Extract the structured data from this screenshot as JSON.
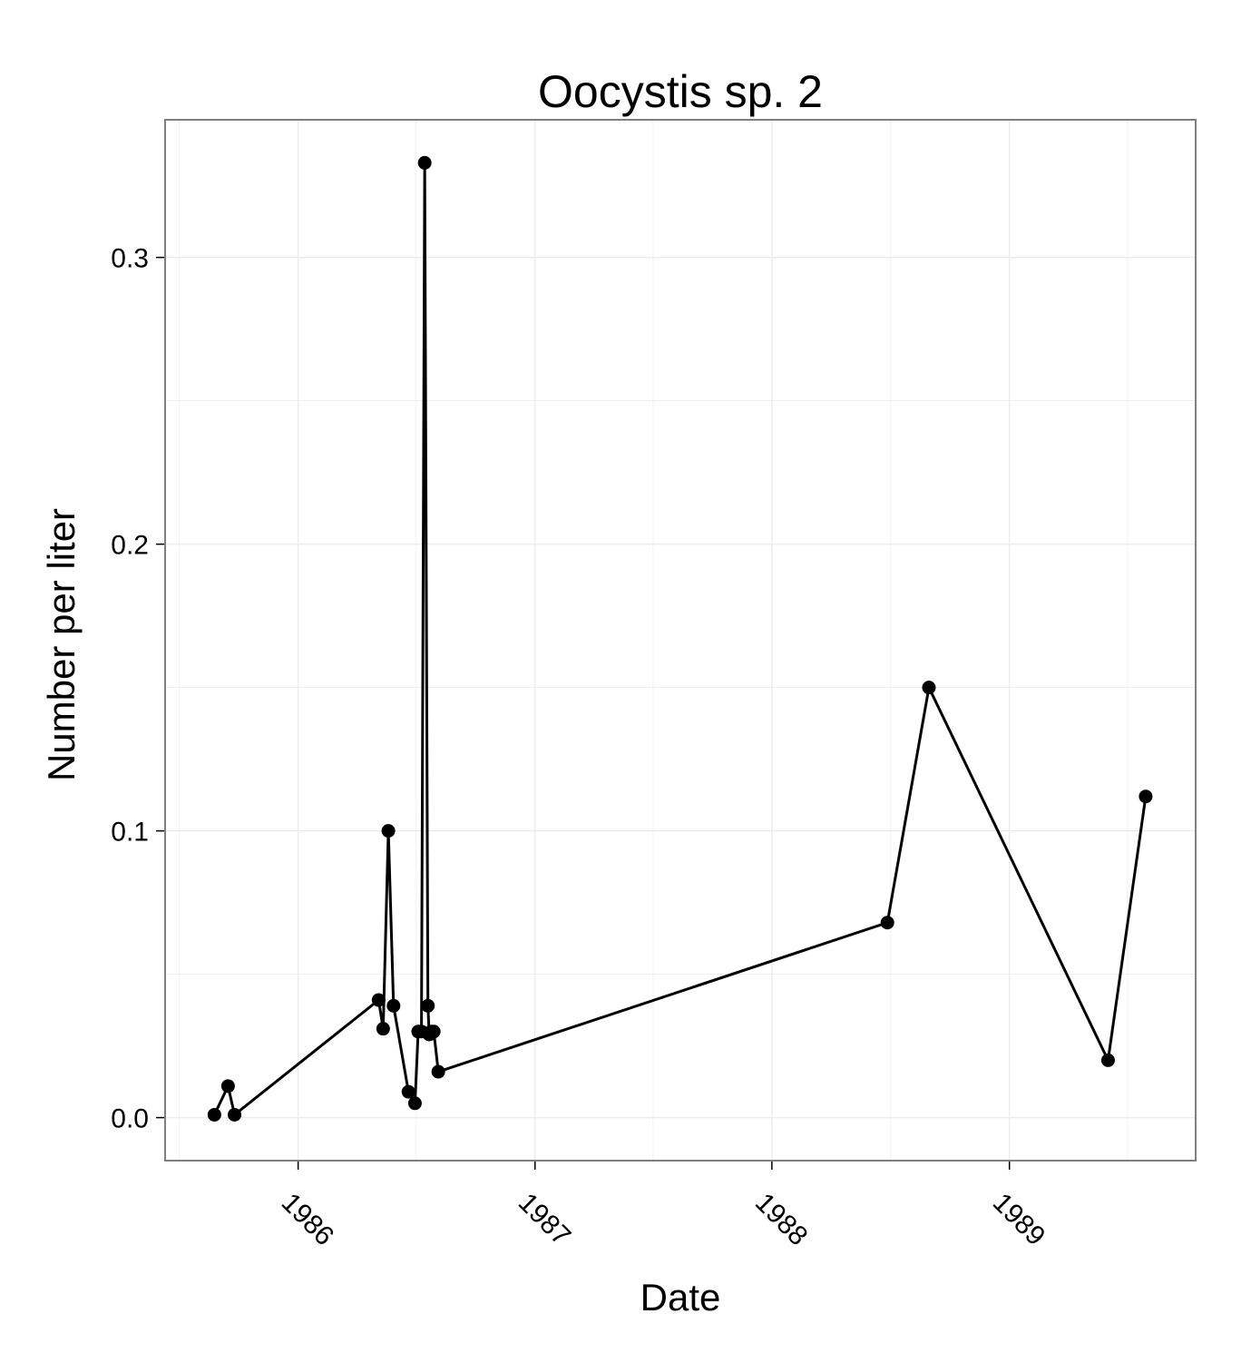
{
  "chart_data": {
    "type": "line",
    "title": "Oocystis sp. 2",
    "xlabel": "Date",
    "ylabel": "Number per liter",
    "x_ticks": [
      "1986",
      "1987",
      "1988",
      "1989"
    ],
    "y_ticks": [
      "0.0",
      "0.1",
      "0.2",
      "0.3"
    ],
    "xlim": [
      "1985-06-10",
      "1989-10-15"
    ],
    "ylim": [
      -0.015,
      0.348
    ],
    "grid": true,
    "legend": "none",
    "series": [
      {
        "x": [
          "1985-08-25",
          "1985-09-15",
          "1985-09-25",
          "1986-05-05",
          "1986-05-12",
          "1986-05-20",
          "1986-05-28",
          "1986-06-20",
          "1986-06-30",
          "1986-07-05",
          "1986-07-10",
          "1986-07-15",
          "1986-07-20",
          "1986-07-22",
          "1986-07-25",
          "1986-07-29",
          "1986-08-05",
          "1988-06-27",
          "1988-08-30",
          "1989-06-02",
          "1989-07-30"
        ],
        "y": [
          0.001,
          0.011,
          0.001,
          0.041,
          0.031,
          0.1,
          0.039,
          0.009,
          0.005,
          0.03,
          0.03,
          0.333,
          0.039,
          0.029,
          0.03,
          0.03,
          0.016,
          0.068,
          0.15,
          0.02,
          0.112
        ]
      }
    ],
    "colors": {
      "line": "#000000",
      "points": "#000000",
      "panel_border": "#7f7f7f",
      "grid": "#ebebeb"
    }
  }
}
